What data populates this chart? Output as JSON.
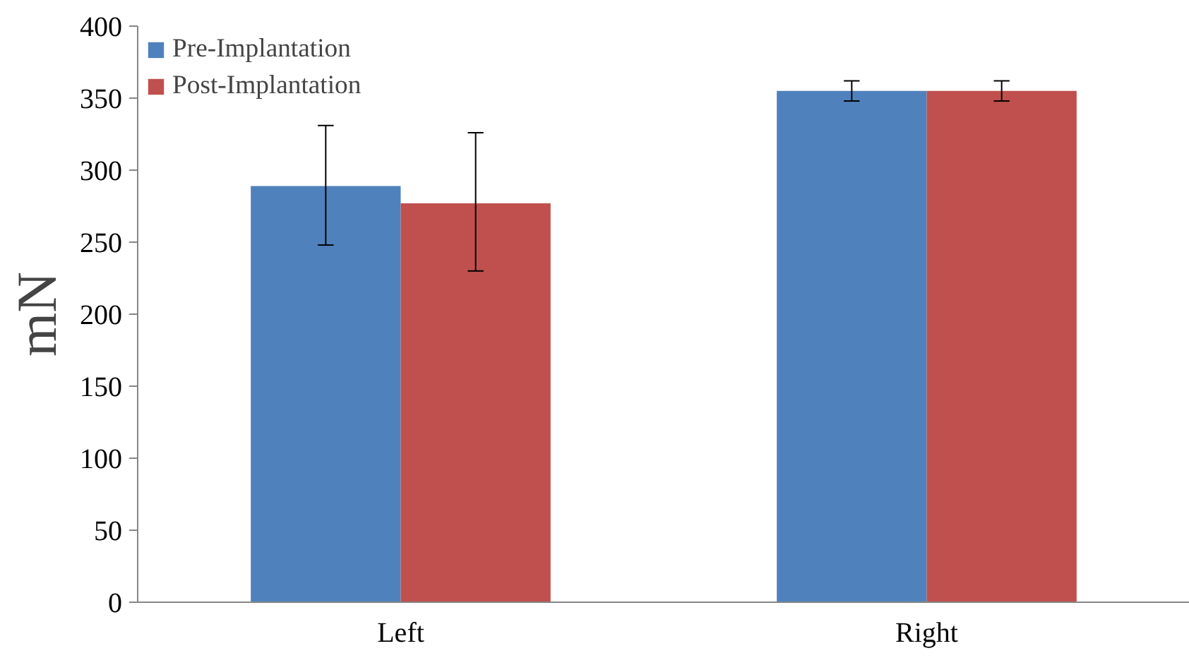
{
  "chart_data": {
    "type": "bar",
    "ylabel": "mN",
    "categories": [
      "Left",
      "Right"
    ],
    "series": [
      {
        "name": "Pre-Implantation",
        "color": "#4f81bd",
        "values": [
          289,
          355
        ],
        "errors": [
          [
            248,
            331
          ],
          [
            348,
            362
          ]
        ]
      },
      {
        "name": "Post-Implantation",
        "color": "#c0504d",
        "values": [
          277,
          355
        ],
        "errors": [
          [
            230,
            326
          ],
          [
            348,
            362
          ]
        ]
      }
    ],
    "ylim": [
      0,
      400
    ],
    "yticks": [
      0,
      50,
      100,
      150,
      200,
      250,
      300,
      350,
      400
    ],
    "legend": "top left",
    "grid": false
  }
}
